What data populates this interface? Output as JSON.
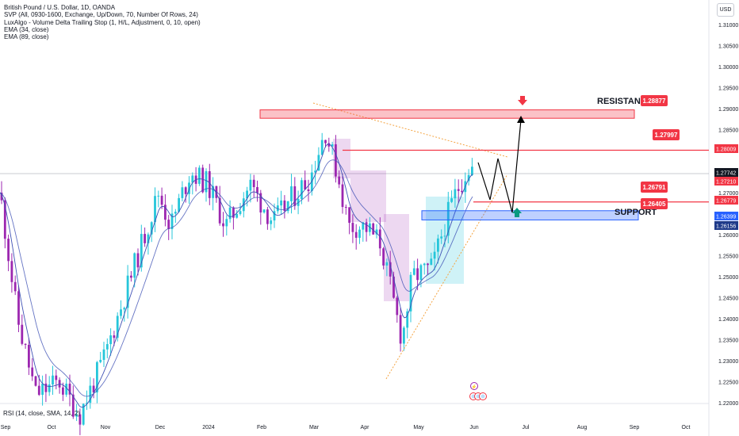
{
  "legend": {
    "symbol": "British Pound / U.S. Dollar, 1D, OANDA",
    "indicators": [
      "SVP (All, 0930-1600, Exchange, Up/Down, 70, Number Of Rows, 24)",
      "LuxAlgo - Volume Delta Trailing Stop (1, H/L, Adjustment, 0, 10, open)",
      "EMA (34, close)",
      "EMA (89, close)"
    ]
  },
  "currency_button": "USD",
  "rsi_label": "RSI (14, close, SMA, 14, 2)",
  "colors": {
    "up": "#26c6da",
    "down": "#9c27b0",
    "resistance": "#f23645",
    "support": "#2962ff",
    "ema": "#3f51b5",
    "green_arrow": "#089981",
    "trend": "#f4a442"
  },
  "chart_data": {
    "type": "candlestick",
    "symbol": "GBPUSD",
    "timeframe": "1D",
    "y_axis": {
      "min": 1.22,
      "max": 1.31,
      "ticks": [
        "1.31000",
        "1.30500",
        "1.30000",
        "1.29500",
        "1.29000",
        "1.28500",
        "1.28000",
        "1.27500",
        "1.27000",
        "1.26500",
        "1.26000",
        "1.25500",
        "1.25000",
        "1.24500",
        "1.24000",
        "1.23500",
        "1.23000",
        "1.22500",
        "1.22000"
      ]
    },
    "x_axis_labels": [
      "Sep",
      "Oct",
      "Nov",
      "Dec",
      "2024",
      "Feb",
      "Mar",
      "Apr",
      "May",
      "Jun",
      "Jul",
      "Aug",
      "Sep",
      "Oct"
    ],
    "price_tags": [
      {
        "value": 1.28009,
        "label": "1.28009",
        "style": "red"
      },
      {
        "value": 1.27742,
        "label": "1.27742",
        "style": "dark"
      },
      {
        "value": 1.2721,
        "label": "1.27210",
        "style": "red"
      },
      {
        "value": 1.26779,
        "label": "1.26779",
        "style": "red"
      },
      {
        "value": 1.26399,
        "label": "1.26399",
        "style": "blue"
      },
      {
        "value": 1.26156,
        "label": "1.26156",
        "style": "navy"
      }
    ],
    "annotations": {
      "resistance_text": "RESISTANCE",
      "support_text": "SUPPORT",
      "callouts": [
        {
          "label": "1.28877",
          "price": 1.28877
        },
        {
          "label": "1.27997",
          "price": 1.27997
        },
        {
          "label": "1.26791",
          "price": 1.26791
        },
        {
          "label": "1.26405",
          "price": 1.26405
        }
      ],
      "resistance_zone": [
        1.2877,
        1.2897
      ],
      "support_zone": [
        1.2635,
        1.2657
      ],
      "horizontal_lines": [
        1.28009,
        1.26779
      ]
    }
  }
}
